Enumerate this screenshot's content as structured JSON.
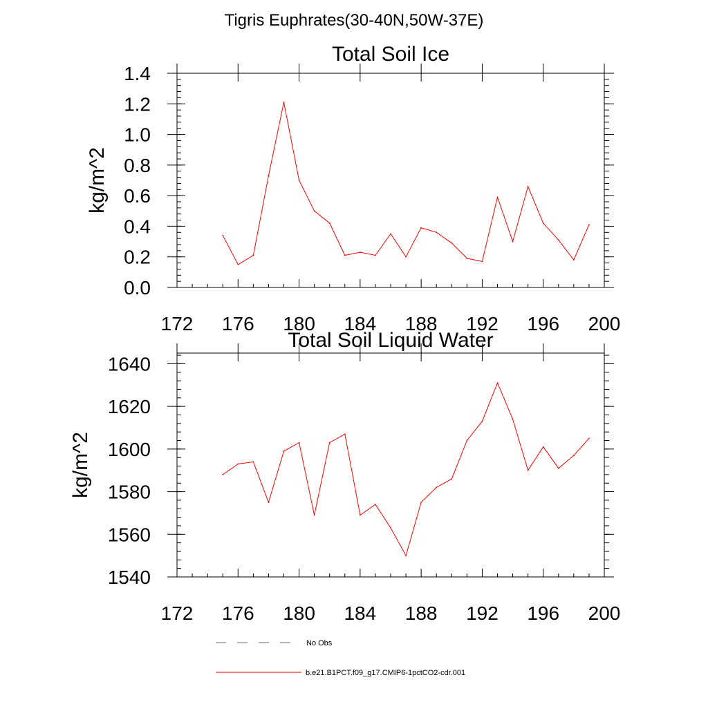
{
  "figure": {
    "title": "Tigris Euphrates(30-40N,50W-37E)"
  },
  "chart_data": [
    {
      "type": "line",
      "title": "Total Soil Ice",
      "xlabel": "",
      "ylabel": "kg/m^2",
      "xlim": [
        172,
        200
      ],
      "ylim": [
        0.0,
        1.4
      ],
      "xticks": [
        172,
        176,
        180,
        184,
        188,
        192,
        196,
        200
      ],
      "xtick_labels": [
        "172",
        "176",
        "180",
        "184",
        "188",
        "192",
        "196",
        "200"
      ],
      "yticks": [
        0.0,
        0.2,
        0.4,
        0.6,
        0.8,
        1.0,
        1.2,
        1.4
      ],
      "ytick_labels": [
        "0.0",
        "0.2",
        "0.4",
        "0.6",
        "0.8",
        "1.0",
        "1.2",
        "1.4"
      ],
      "grid": false,
      "series": [
        {
          "name": "b.e21.B1PCT.f09_g17.CMIP6-1pctCO2-cdr.001",
          "color": "#ff0000",
          "x": [
            175,
            176,
            177,
            178,
            179,
            180,
            181,
            182,
            183,
            184,
            185,
            186,
            187,
            188,
            189,
            190,
            191,
            192,
            193,
            194,
            195,
            196,
            197,
            198,
            199
          ],
          "y": [
            0.34,
            0.15,
            0.21,
            0.73,
            1.21,
            0.7,
            0.5,
            0.42,
            0.21,
            0.23,
            0.21,
            0.35,
            0.2,
            0.39,
            0.36,
            0.29,
            0.19,
            0.17,
            0.59,
            0.3,
            0.66,
            0.42,
            0.31,
            0.18,
            0.41
          ]
        }
      ]
    },
    {
      "type": "line",
      "title": "Total Soil Liquid Water",
      "xlabel": "",
      "ylabel": "kg/m^2",
      "xlim": [
        172,
        200
      ],
      "ylim": [
        1540,
        1645
      ],
      "xticks": [
        172,
        176,
        180,
        184,
        188,
        192,
        196,
        200
      ],
      "xtick_labels": [
        "172",
        "176",
        "180",
        "184",
        "188",
        "192",
        "196",
        "200"
      ],
      "yticks": [
        1540,
        1560,
        1580,
        1600,
        1620,
        1640
      ],
      "ytick_labels": [
        "1540",
        "1560",
        "1580",
        "1600",
        "1620",
        "1640"
      ],
      "grid": false,
      "series": [
        {
          "name": "b.e21.B1PCT.f09_g17.CMIP6-1pctCO2-cdr.001",
          "color": "#ff0000",
          "x": [
            175,
            176,
            177,
            178,
            179,
            180,
            181,
            182,
            183,
            184,
            185,
            186,
            187,
            188,
            189,
            190,
            191,
            192,
            193,
            194,
            195,
            196,
            197,
            198,
            199
          ],
          "y": [
            1588,
            1593,
            1594,
            1575,
            1599,
            1603,
            1569,
            1603,
            1607,
            1569,
            1574,
            1563,
            1550,
            1575,
            1582,
            1586,
            1604,
            1613,
            1631,
            1614,
            1590,
            1601,
            1591,
            1597,
            1605
          ]
        }
      ]
    }
  ],
  "legend": {
    "placement": "bottom",
    "entries": [
      {
        "label": "No Obs",
        "color": "#6a6f9a",
        "style": "dashed"
      },
      {
        "label": "b.e21.B1PCT.f09_g17.CMIP6-1pctCO2-cdr.001",
        "color": "#ff0000",
        "style": "solid"
      }
    ]
  }
}
